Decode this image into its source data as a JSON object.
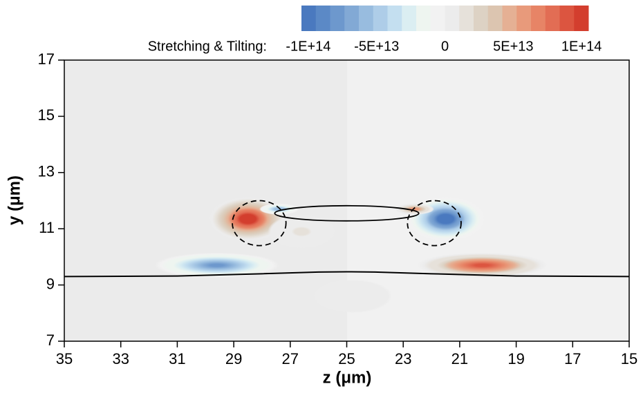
{
  "chart_data": {
    "type": "contour",
    "colorbar_label": "Stretching & Tilting:",
    "clim": [
      -105000000000000.0,
      105000000000000.0
    ],
    "cticks": [
      {
        "value": -100000000000000.0,
        "label": "-1E+14"
      },
      {
        "value": -50000000000000.0,
        "label": "-5E+13"
      },
      0,
      {
        "value": 50000000000000.0,
        "label": "5E+13"
      },
      {
        "value": 100000000000000.0,
        "label": "1E+14"
      }
    ],
    "colors": [
      "#4a79bf",
      "#5b89c6",
      "#6d98cd",
      "#82a9d5",
      "#98bcdf",
      "#aecde8",
      "#c4dff0",
      "#dbeef2",
      "#eef5f0",
      "#f2f2f2",
      "#ececec",
      "#e6e1da",
      "#ddd2c4",
      "#dcc5b0",
      "#e5b094",
      "#e89a7b",
      "#e78466",
      "#e26d54",
      "#dc5540",
      "#d33e2e"
    ],
    "xlabel": "z (μm)",
    "ylabel": "y (μm)",
    "xlim": [
      35,
      15
    ],
    "ylim": [
      7,
      17
    ],
    "xticks": [
      35,
      33,
      31,
      29,
      27,
      25,
      23,
      21,
      19,
      17,
      15
    ],
    "yticks": [
      7,
      9,
      11,
      13,
      15,
      17
    ],
    "blobs": [
      {
        "z": 28.5,
        "y": 11.35,
        "rz": 1.4,
        "ry": 0.8,
        "value": 110000000000000.0
      },
      {
        "z": 21.5,
        "y": 11.35,
        "rz": 1.4,
        "ry": 0.8,
        "value": -110000000000000.0
      },
      {
        "z": 29.6,
        "y": 9.7,
        "rz": 2.2,
        "ry": 0.45,
        "value": -80000000000000.0
      },
      {
        "z": 20.2,
        "y": 9.7,
        "rz": 2.3,
        "ry": 0.45,
        "value": 90000000000000.0
      },
      {
        "z": 27.4,
        "y": 11.7,
        "rz": 0.7,
        "ry": 0.2,
        "value": -60000000000000.0
      },
      {
        "z": 22.6,
        "y": 11.7,
        "rz": 0.7,
        "ry": 0.2,
        "value": 60000000000000.0
      },
      {
        "z": 26.6,
        "y": 10.9,
        "rz": 1.2,
        "ry": 0.6,
        "value": 12000000000000.0
      },
      {
        "z": 24.8,
        "y": 8.6,
        "rz": 1.4,
        "ry": 0.6,
        "value": 4000000000000.0
      }
    ],
    "lines": [
      {
        "style": "solid",
        "z": [
          35,
          31,
          28,
          26,
          25,
          24,
          22,
          19,
          15
        ],
        "y": [
          9.3,
          9.32,
          9.4,
          9.46,
          9.47,
          9.46,
          9.4,
          9.32,
          9.3
        ]
      }
    ],
    "ellipses": [
      {
        "style": "solid",
        "z": 25,
        "y": 11.55,
        "rz": 2.55,
        "ry": 0.27
      },
      {
        "style": "dashed",
        "z": 28.1,
        "y": 11.2,
        "rz": 0.95,
        "ry": 0.8
      },
      {
        "style": "dashed",
        "z": 21.9,
        "y": 11.2,
        "rz": 0.95,
        "ry": 0.8
      }
    ]
  }
}
